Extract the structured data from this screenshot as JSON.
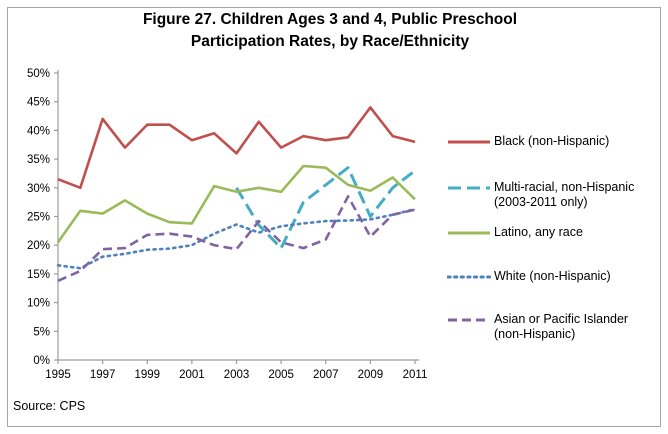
{
  "title_line1": "Figure 27. Children Ages 3 and 4, Public Preschool",
  "title_line2": "Participation Rates, by Race/Ethnicity",
  "source_note": "Source: CPS",
  "colors": {
    "black_series": "#c0504d",
    "multiracial_series": "#45acc5",
    "latino_series": "#9bbb59",
    "white_series": "#4f81bd",
    "asian_series": "#8064a2",
    "axis": "#9c9c9c",
    "frame_border": "#a6a6a6"
  },
  "chart_data": {
    "type": "line",
    "x": [
      1995,
      1996,
      1997,
      1998,
      1999,
      2000,
      2001,
      2002,
      2003,
      2004,
      2005,
      2006,
      2007,
      2008,
      2009,
      2010,
      2011
    ],
    "x_tick_labels": [
      "1995",
      "1997",
      "1999",
      "2001",
      "2003",
      "2005",
      "2007",
      "2009",
      "2011"
    ],
    "y_ticks": [
      0,
      5,
      10,
      15,
      20,
      25,
      30,
      35,
      40,
      45,
      50
    ],
    "y_tick_labels": [
      "0%",
      "5%",
      "10%",
      "15%",
      "20%",
      "25%",
      "30%",
      "35%",
      "40%",
      "45%",
      "50%"
    ],
    "ylim": [
      0,
      50
    ],
    "grid": false,
    "legend_position": "right",
    "series": [
      {
        "name": "Black (non-Hispanic)",
        "legend_lines": [
          "Black (non-Hispanic)"
        ],
        "color": "#c0504d",
        "style": "solid",
        "values": [
          31.5,
          30,
          42,
          37,
          41,
          41,
          38.3,
          39.5,
          36,
          41.5,
          37,
          39,
          38.3,
          38.8,
          44,
          39,
          38
        ]
      },
      {
        "name": "Multi-racial, non-Hispanic (2003-2011 only)",
        "legend_lines": [
          "Multi-racial, non-Hispanic",
          "(2003-2011 only)"
        ],
        "color": "#45acc5",
        "style": "long-dash",
        "values": [
          null,
          null,
          null,
          null,
          null,
          null,
          null,
          null,
          30,
          23.5,
          19.5,
          27.5,
          30.5,
          33.5,
          25,
          30,
          33
        ]
      },
      {
        "name": "Latino, any race",
        "legend_lines": [
          "Latino, any race"
        ],
        "color": "#9bbb59",
        "style": "solid",
        "values": [
          20.5,
          26,
          25.5,
          27.8,
          25.5,
          24,
          23.8,
          30.3,
          29.3,
          30,
          29.3,
          33.8,
          33.5,
          30.5,
          29.5,
          31.8,
          28
        ]
      },
      {
        "name": "White (non-Hispanic)",
        "legend_lines": [
          "White (non-Hispanic)"
        ],
        "color": "#4f81bd",
        "style": "dot",
        "values": [
          16.5,
          16,
          18,
          18.5,
          19.2,
          19.4,
          20,
          22,
          23.6,
          22.2,
          23.3,
          23.8,
          24.2,
          24.3,
          24.5,
          25.3,
          26.3
        ]
      },
      {
        "name": "Asian or Pacific Islander (non-Hispanic)",
        "legend_lines": [
          "Asian or Pacific Islander",
          "(non-Hispanic)"
        ],
        "color": "#8064a2",
        "style": "dash",
        "values": [
          13.8,
          15.5,
          19.3,
          19.5,
          21.8,
          22,
          21.5,
          20,
          19.3,
          24.2,
          20.5,
          19.5,
          21,
          28.5,
          21.5,
          25.3,
          26.2
        ]
      }
    ]
  }
}
